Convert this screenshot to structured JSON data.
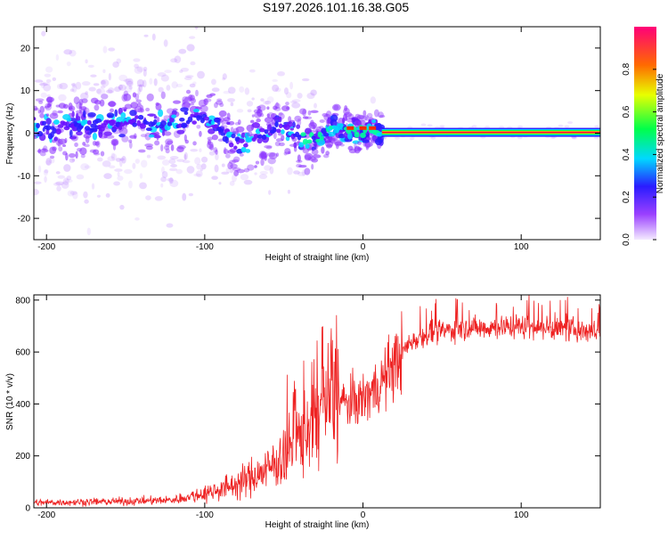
{
  "title": "S197.2026.101.16.38.G05",
  "chart_data": [
    {
      "type": "heatmap",
      "id": "spectrogram",
      "xlabel": "Height of straight line (km)",
      "ylabel": "Frequency (Hz)",
      "xlim": [
        -208,
        150
      ],
      "ylim": [
        -25,
        25
      ],
      "xticks": [
        -200,
        -100,
        0,
        100
      ],
      "yticks": [
        -20,
        -10,
        0,
        10,
        20
      ],
      "colorbar": {
        "label": "Normalized spectral amplitude",
        "range": [
          0,
          1
        ],
        "ticks": [
          "0.0",
          "0.2",
          "0.4",
          "0.6",
          "0.8"
        ]
      },
      "ridge": [
        {
          "x": -208,
          "f": 1.0
        },
        {
          "x": -180,
          "f": 1.5
        },
        {
          "x": -150,
          "f": 2.5
        },
        {
          "x": -120,
          "f": 2.0
        },
        {
          "x": -105,
          "f": 4.0
        },
        {
          "x": -90,
          "f": 1.5
        },
        {
          "x": -78,
          "f": -3.5
        },
        {
          "x": -65,
          "f": -0.5
        },
        {
          "x": -50,
          "f": 1.0
        },
        {
          "x": -35,
          "f": -2.5
        },
        {
          "x": -22,
          "f": 0.5
        },
        {
          "x": -10,
          "f": 1.0
        },
        {
          "x": 0,
          "f": 0.5
        },
        {
          "x": 10,
          "f": 0.5
        },
        {
          "x": 150,
          "f": 0.2
        }
      ],
      "carrier_start_x": 12
    },
    {
      "type": "line",
      "id": "snr",
      "xlabel": "Height of straight line (km)",
      "ylabel": "SNR (10 * v/v)",
      "xlim": [
        -208,
        150
      ],
      "ylim": [
        0,
        820
      ],
      "xticks": [
        -200,
        -100,
        0,
        100
      ],
      "yticks": [
        0,
        200,
        400,
        600,
        800
      ],
      "color": "#ee2222",
      "series": [
        {
          "name": "SNR",
          "x": [
            -208,
            -180,
            -150,
            -120,
            -100,
            -80,
            -60,
            -45,
            -30,
            -20,
            -10,
            0,
            10,
            20,
            30,
            40,
            60,
            80,
            100,
            120,
            150
          ],
          "y": [
            20,
            22,
            25,
            30,
            55,
            90,
            150,
            230,
            350,
            430,
            400,
            420,
            470,
            560,
            640,
            670,
            690,
            695,
            700,
            690,
            680
          ]
        }
      ]
    }
  ]
}
